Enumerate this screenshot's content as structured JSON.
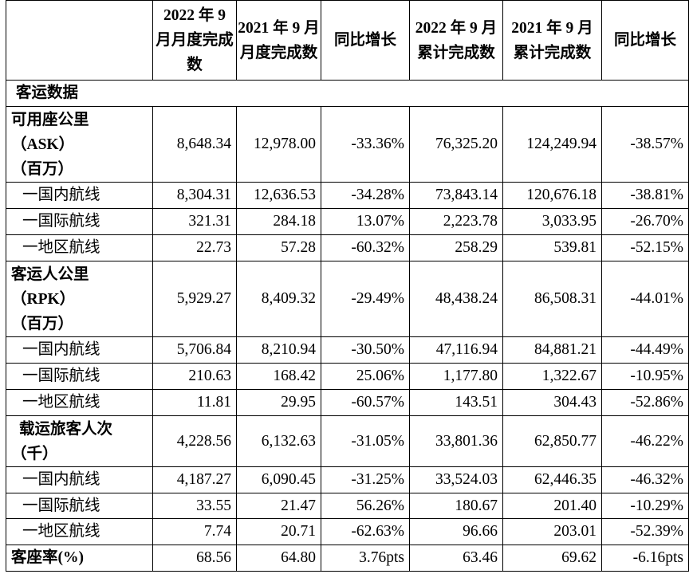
{
  "headers": [
    "",
    "2022 年 9 月月度完成数",
    "2021 年 9 月月度完成数",
    "同比增长",
    "2022 年 9 月累计完成数",
    "2021 年 9 月累计完成数",
    "同比增长"
  ],
  "section_title": "客运数据",
  "metrics": [
    {
      "label_lines": [
        "可用座公里",
        "（ASK）",
        "（百万）"
      ],
      "values": [
        "8,648.34",
        "12,978.00",
        "-33.36%",
        "76,325.20",
        "124,249.94",
        "-38.57%"
      ],
      "rows": [
        {
          "label": "一国内航线",
          "values": [
            "8,304.31",
            "12,636.53",
            "-34.28%",
            "73,843.14",
            "120,676.18",
            "-38.81%"
          ]
        },
        {
          "label": "一国际航线",
          "values": [
            "321.31",
            "284.18",
            "13.07%",
            "2,223.78",
            "3,033.95",
            "-26.70%"
          ]
        },
        {
          "label": "一地区航线",
          "values": [
            "22.73",
            "57.28",
            "-60.32%",
            "258.29",
            "539.81",
            "-52.15%"
          ]
        }
      ]
    },
    {
      "label_lines": [
        "客运人公里",
        "（RPK）",
        "（百万）"
      ],
      "values": [
        "5,929.27",
        "8,409.32",
        "-29.49%",
        "48,438.24",
        "86,508.31",
        "-44.01%"
      ],
      "rows": [
        {
          "label": "一国内航线",
          "values": [
            "5,706.84",
            "8,210.94",
            "-30.50%",
            "47,116.94",
            "84,881.21",
            "-44.49%"
          ]
        },
        {
          "label": "一国际航线",
          "values": [
            "210.63",
            "168.42",
            "25.06%",
            "1,177.80",
            "1,322.67",
            "-10.95%"
          ]
        },
        {
          "label": "一地区航线",
          "values": [
            "11.81",
            "29.95",
            "-60.57%",
            "143.51",
            "304.43",
            "-52.86%"
          ]
        }
      ]
    },
    {
      "label_lines": [
        "载运旅客人次",
        "（千）"
      ],
      "values": [
        "4,228.56",
        "6,132.63",
        "-31.05%",
        "33,801.36",
        "62,850.77",
        "-46.22%"
      ],
      "rows": [
        {
          "label": "一国内航线",
          "values": [
            "4,187.27",
            "6,090.45",
            "-31.25%",
            "33,524.03",
            "62,446.35",
            "-46.32%"
          ]
        },
        {
          "label": "一国际航线",
          "values": [
            "33.55",
            "21.47",
            "56.26%",
            "180.67",
            "201.40",
            "-10.29%"
          ]
        },
        {
          "label": "一地区航线",
          "values": [
            "7.74",
            "20.71",
            "-62.63%",
            "96.66",
            "203.01",
            "-52.39%"
          ]
        }
      ]
    }
  ],
  "load_factor": {
    "label": "客座率(%)",
    "values": [
      "68.56",
      "64.80",
      "3.76pts",
      "63.46",
      "69.62",
      "-6.16pts"
    ]
  }
}
